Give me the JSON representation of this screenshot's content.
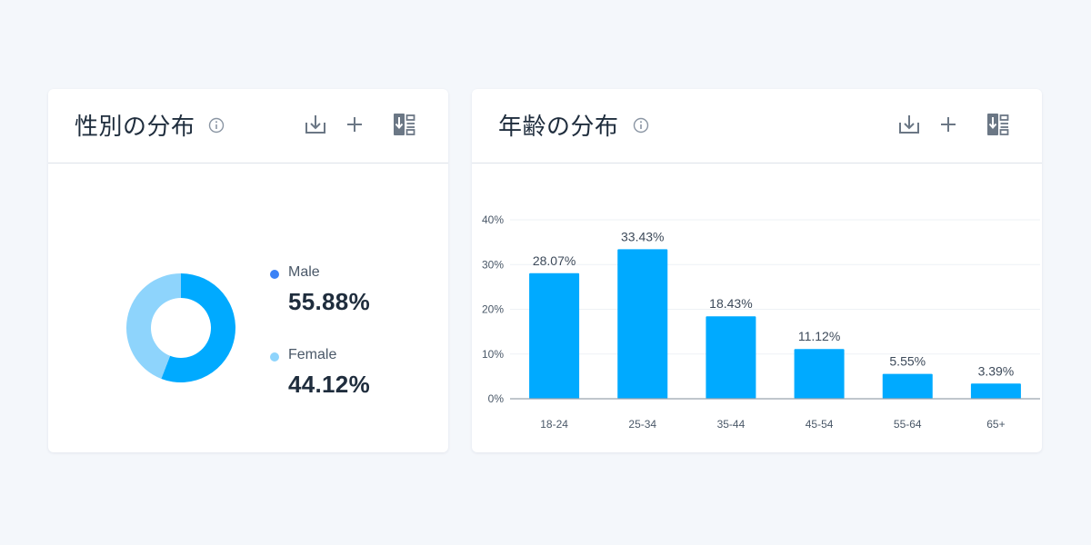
{
  "gender_card": {
    "title": "性別の分布",
    "legend": [
      {
        "label": "Male",
        "value": "55.88%",
        "color": "#00aaff"
      },
      {
        "label": "Female",
        "value": "44.12%",
        "color": "#8ed4fc"
      }
    ]
  },
  "age_card": {
    "title": "年齢の分布"
  },
  "icons": {
    "info": "info-icon",
    "download": "download-icon",
    "add": "plus-icon",
    "export": "export-report-icon",
    "icon_color": "#6b7785"
  },
  "colors": {
    "bar": "#00aaff",
    "male_dot": "#3b82f6",
    "female_dot": "#8ed4fc",
    "title": "#1f2d3d"
  },
  "chart_data": [
    {
      "type": "pie",
      "variant": "donut",
      "categories": [
        "Male",
        "Female"
      ],
      "values": [
        55.88,
        44.12
      ],
      "colors": [
        "#00aaff",
        "#8ed4fc"
      ],
      "title": "性別の分布",
      "legend": "right"
    },
    {
      "type": "bar",
      "categories": [
        "18-24",
        "25-34",
        "35-44",
        "45-54",
        "55-64",
        "65+"
      ],
      "values": [
        28.07,
        33.43,
        18.43,
        11.12,
        5.55,
        3.39
      ],
      "data_labels": [
        "28.07%",
        "33.43%",
        "18.43%",
        "11.12%",
        "5.55%",
        "3.39%"
      ],
      "title": "年齢の分布",
      "xlabel": "",
      "ylabel": "",
      "ylim": [
        0,
        40
      ],
      "yticks": [
        0,
        10,
        20,
        30,
        40
      ],
      "ytick_labels": [
        "0%",
        "10%",
        "20%",
        "30%",
        "40%"
      ],
      "grid": true,
      "color": "#00aaff"
    }
  ]
}
